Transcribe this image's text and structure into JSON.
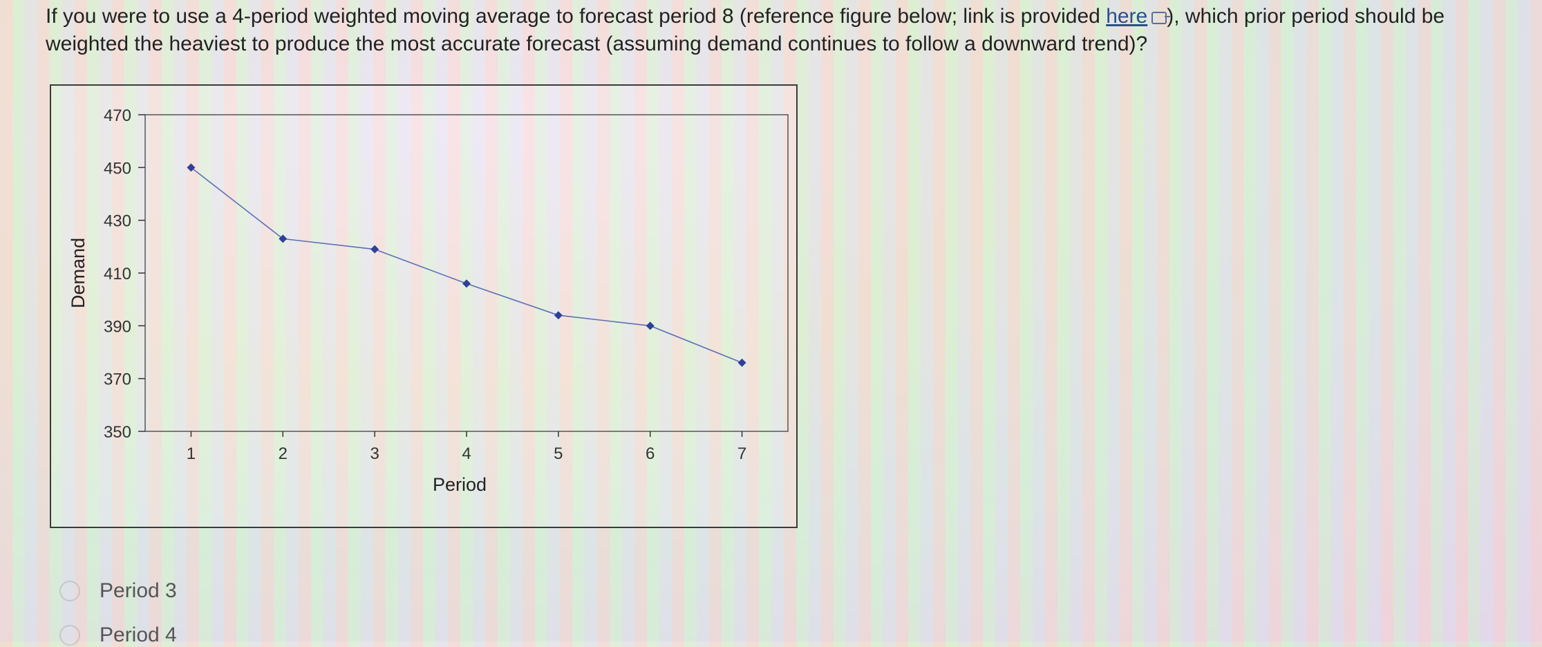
{
  "question": {
    "text_before": "If you were to use a 4-period weighted moving average to forecast period 8 (reference figure below; link is provided ",
    "link_text": "here",
    "text_after": "), which prior period should be weighted the heaviest to produce the most accurate forecast (assuming demand continues to follow a downward trend)?",
    "link_icon": "external-link-icon"
  },
  "chart_data": {
    "type": "line",
    "title": "",
    "xlabel": "Period",
    "ylabel": "Demand",
    "x": [
      1,
      2,
      3,
      4,
      5,
      6,
      7
    ],
    "values": [
      450,
      423,
      419,
      406,
      394,
      390,
      376
    ],
    "ylim": [
      350,
      470
    ],
    "yticks": [
      350,
      370,
      390,
      410,
      430,
      450,
      470
    ],
    "xlim": [
      0.5,
      7.5
    ],
    "grid": false,
    "legend": "none",
    "line_color": "#5b6fb5",
    "marker_color": "#2f3f9a"
  },
  "options": [
    {
      "label": "Period 3"
    },
    {
      "label": "Period 4"
    }
  ]
}
